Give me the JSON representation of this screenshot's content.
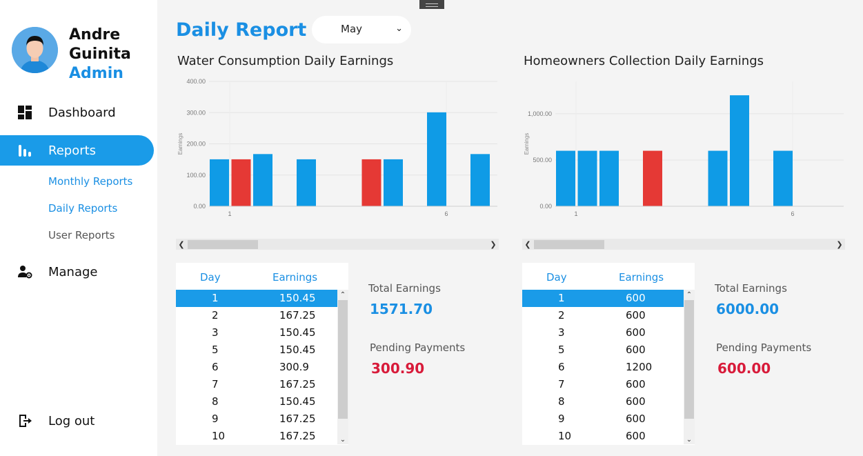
{
  "sidebar": {
    "user": {
      "first_name": "Andre",
      "last_name": "Guinita",
      "role": "Admin"
    },
    "nav": {
      "dashboard": "Dashboard",
      "reports": "Reports",
      "monthly_reports": "Monthly Reports",
      "daily_reports": "Daily Reports",
      "user_reports": "User Reports",
      "manage": "Manage",
      "logout": "Log out"
    }
  },
  "header": {
    "title": "Daily Report",
    "month_selected": "May"
  },
  "water": {
    "title": "Water Consumption Daily Earnings",
    "table": {
      "headers": [
        "Day",
        "Earnings"
      ],
      "rows": [
        [
          "1",
          "150.45"
        ],
        [
          "2",
          "167.25"
        ],
        [
          "3",
          "150.45"
        ],
        [
          "5",
          "150.45"
        ],
        [
          "6",
          "300.9"
        ],
        [
          "7",
          "167.25"
        ],
        [
          "8",
          "150.45"
        ],
        [
          "9",
          "167.25"
        ],
        [
          "10",
          "167.25"
        ]
      ]
    },
    "total_label": "Total Earnings",
    "total_value": "1571.70",
    "pending_label": "Pending Payments",
    "pending_value": "300.90"
  },
  "homeowners": {
    "title": "Homeowners Collection Daily Earnings",
    "table": {
      "headers": [
        "Day",
        "Earnings"
      ],
      "rows": [
        [
          "1",
          "600"
        ],
        [
          "2",
          "600"
        ],
        [
          "3",
          "600"
        ],
        [
          "5",
          "600"
        ],
        [
          "6",
          "1200"
        ],
        [
          "7",
          "600"
        ],
        [
          "8",
          "600"
        ],
        [
          "9",
          "600"
        ],
        [
          "10",
          "600"
        ]
      ]
    },
    "total_label": "Total Earnings",
    "total_value": "6000.00",
    "pending_label": "Pending Payments",
    "pending_value": "600.00"
  },
  "colors": {
    "accent": "#1a9be8",
    "paid": "#0f9be6",
    "pending": "#e53935",
    "pending_text": "#d81b3a"
  },
  "chart_data": [
    {
      "type": "bar",
      "ylabel": "Earnings",
      "ylim": [
        0,
        400
      ],
      "y_ticks": [
        "0.00",
        "100.00",
        "200.00",
        "300.00",
        "400.00"
      ],
      "x_ticks": [
        "1",
        "6"
      ],
      "series": [
        {
          "values": [
            150.45,
            null,
            167.25,
            150.45,
            null,
            null,
            300.9,
            167.25
          ],
          "color": "#0f9be6"
        },
        {
          "values": [
            null,
            150.45,
            null,
            null,
            null,
            150.45,
            null,
            null
          ],
          "color": "#e53935"
        }
      ],
      "bars": [
        {
          "day": 1,
          "value": 150.45,
          "status": "paid"
        },
        {
          "day": 1,
          "value": 150.45,
          "status": "pending"
        },
        {
          "day": 2,
          "value": 167.25,
          "status": "paid"
        },
        {
          "day": 3,
          "value": 150.45,
          "status": "paid"
        },
        {
          "day": 5,
          "value": 150.45,
          "status": "pending"
        },
        {
          "day": 5,
          "value": 150.45,
          "status": "paid"
        },
        {
          "day": 6,
          "value": 300.9,
          "status": "paid"
        },
        {
          "day": 7,
          "value": 167.25,
          "status": "paid"
        }
      ],
      "grid": true
    },
    {
      "type": "bar",
      "ylabel": "Earnings",
      "ylim": [
        0,
        1350
      ],
      "y_ticks": [
        "0.00",
        "500.00",
        "1,000.00"
      ],
      "x_ticks": [
        "1",
        "6"
      ],
      "bars": [
        {
          "day": 1,
          "value": 600,
          "status": "paid"
        },
        {
          "day": 2,
          "value": 600,
          "status": "paid"
        },
        {
          "day": 3,
          "value": 600,
          "status": "paid"
        },
        {
          "day": 5,
          "value": 600,
          "status": "pending"
        },
        {
          "day": 5,
          "value": 600,
          "status": "paid"
        },
        {
          "day": 6,
          "value": 1200,
          "status": "paid"
        },
        {
          "day": 7,
          "value": 600,
          "status": "paid"
        }
      ],
      "grid": true
    }
  ]
}
